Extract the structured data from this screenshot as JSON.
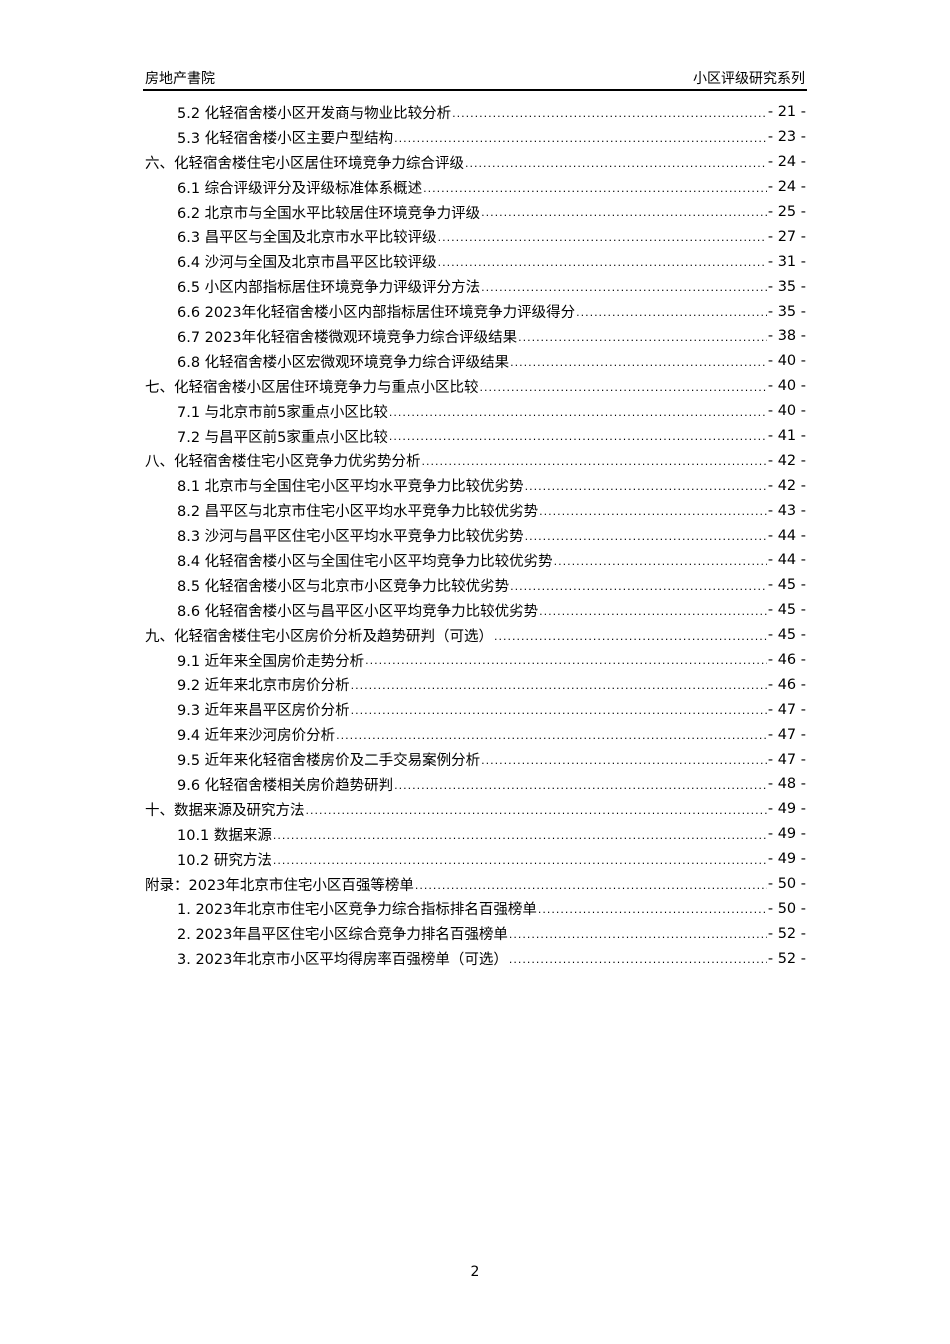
{
  "header": {
    "left": "房地产書院",
    "right": "小区评级研究系列"
  },
  "toc": [
    {
      "level": 2,
      "text": "5.2 化轻宿舍楼小区开发商与物业比较分析",
      "page": "- 21 -"
    },
    {
      "level": 2,
      "text": "5.3 化轻宿舍楼小区主要户型结构",
      "page": "- 23 -"
    },
    {
      "level": 1,
      "text": "六、化轻宿舍楼住宅小区居住环境竞争力综合评级",
      "page": "- 24 -"
    },
    {
      "level": 2,
      "text": "6.1 综合评级评分及评级标准体系概述",
      "page": "- 24 -"
    },
    {
      "level": 2,
      "text": "6.2 北京市与全国水平比较居住环境竞争力评级",
      "page": "- 25 -"
    },
    {
      "level": 2,
      "text": "6.3 昌平区与全国及北京市水平比较评级",
      "page": "- 27 -"
    },
    {
      "level": 2,
      "text": "6.4 沙河与全国及北京市昌平区比较评级",
      "page": "- 31 -"
    },
    {
      "level": 2,
      "text": "6.5 小区内部指标居住环境竞争力评级评分方法",
      "page": "- 35 -"
    },
    {
      "level": 2,
      "text": "6.6 2023年化轻宿舍楼小区内部指标居住环境竞争力评级得分",
      "page": "- 35 -"
    },
    {
      "level": 2,
      "text": "6.7 2023年化轻宿舍楼微观环境竞争力综合评级结果",
      "page": "- 38 -"
    },
    {
      "level": 2,
      "text": "6.8 化轻宿舍楼小区宏微观环境竞争力综合评级结果",
      "page": "- 40 -"
    },
    {
      "level": 1,
      "text": "七、化轻宿舍楼小区居住环境竞争力与重点小区比较",
      "page": "- 40 -"
    },
    {
      "level": 2,
      "text": "7.1 与北京市前5家重点小区比较",
      "page": "- 40 -"
    },
    {
      "level": 2,
      "text": "7.2 与昌平区前5家重点小区比较",
      "page": "- 41 -"
    },
    {
      "level": 1,
      "text": "八、化轻宿舍楼住宅小区竞争力优劣势分析",
      "page": "- 42 -"
    },
    {
      "level": 2,
      "text": "8.1 北京市与全国住宅小区平均水平竞争力比较优劣势",
      "page": "- 42 -"
    },
    {
      "level": 2,
      "text": "8.2 昌平区与北京市住宅小区平均水平竞争力比较优劣势",
      "page": "- 43 -"
    },
    {
      "level": 2,
      "text": "8.3 沙河与昌平区住宅小区平均水平竞争力比较优劣势",
      "page": "- 44 -"
    },
    {
      "level": 2,
      "text": "8.4 化轻宿舍楼小区与全国住宅小区平均竞争力比较优劣势",
      "page": "- 44 -"
    },
    {
      "level": 2,
      "text": "8.5 化轻宿舍楼小区与北京市小区竞争力比较优劣势",
      "page": "- 45 -"
    },
    {
      "level": 2,
      "text": "8.6 化轻宿舍楼小区与昌平区小区平均竞争力比较优劣势",
      "page": "- 45 -"
    },
    {
      "level": 1,
      "text": "九、化轻宿舍楼住宅小区房价分析及趋势研判（可选）",
      "page": "- 45 -"
    },
    {
      "level": 2,
      "text": "9.1 近年来全国房价走势分析",
      "page": "- 46 -"
    },
    {
      "level": 2,
      "text": "9.2 近年来北京市房价分析",
      "page": "- 46 -"
    },
    {
      "level": 2,
      "text": "9.3 近年来昌平区房价分析",
      "page": "- 47 -"
    },
    {
      "level": 2,
      "text": "9.4 近年来沙河房价分析",
      "page": "- 47 -"
    },
    {
      "level": 2,
      "text": "9.5 近年来化轻宿舍楼房价及二手交易案例分析",
      "page": "- 47 -"
    },
    {
      "level": 2,
      "text": "9.6 化轻宿舍楼相关房价趋势研判",
      "page": "- 48 -"
    },
    {
      "level": 1,
      "text": "十、数据来源及研究方法",
      "page": "- 49 -"
    },
    {
      "level": 2,
      "text": "10.1 数据来源",
      "page": "- 49 -"
    },
    {
      "level": 2,
      "text": "10.2 研究方法",
      "page": "- 49 -"
    },
    {
      "level": 1,
      "text": "附录：2023年北京市住宅小区百强等榜单",
      "page": "- 50 -"
    },
    {
      "level": 2,
      "text": "1. 2023年北京市住宅小区竞争力综合指标排名百强榜单",
      "page": "- 50 -"
    },
    {
      "level": 2,
      "text": "2. 2023年昌平区住宅小区综合竞争力排名百强榜单",
      "page": "- 52 -"
    },
    {
      "level": 2,
      "text": "3. 2023年北京市小区平均得房率百强榜单（可选）",
      "page": "- 52 -"
    }
  ],
  "footer": {
    "page_number": "2"
  }
}
